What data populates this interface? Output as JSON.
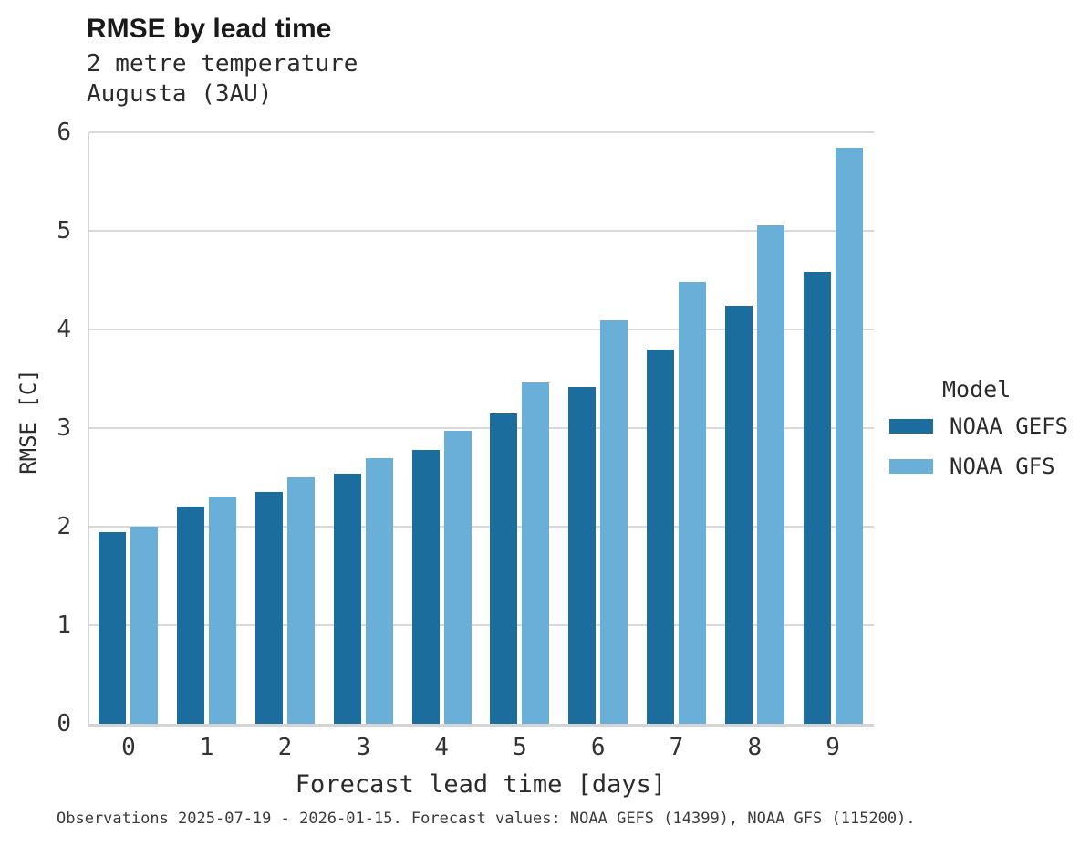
{
  "chart_data": {
    "type": "bar",
    "title": "RMSE by lead time",
    "subtitle_line1": "2 metre temperature",
    "subtitle_line2": "Augusta (3AU)",
    "xlabel": "Forecast lead time [days]",
    "ylabel": "RMSE [C]",
    "categories": [
      0,
      1,
      2,
      3,
      4,
      5,
      6,
      7,
      8,
      9
    ],
    "series": [
      {
        "name": "NOAA GEFS",
        "color": "#1b6d9d",
        "values": [
          1.94,
          2.2,
          2.35,
          2.54,
          2.78,
          3.15,
          3.42,
          3.8,
          4.24,
          4.58
        ]
      },
      {
        "name": "NOAA GFS",
        "color": "#69afd7",
        "values": [
          2.0,
          2.31,
          2.5,
          2.69,
          2.97,
          3.46,
          4.09,
          4.48,
          5.06,
          5.84
        ]
      }
    ],
    "ylim": [
      0,
      6
    ],
    "yticks": [
      0,
      1,
      2,
      3,
      4,
      5,
      6
    ],
    "grid": "horizontal",
    "legend_title": "Model",
    "legend_position": "right",
    "caption": "Observations 2025-07-19 - 2026-01-15. Forecast values: NOAA GEFS (14399), NOAA GFS (115200)."
  },
  "style": {
    "grid_color": "#d9d9d9",
    "spine_color": "#d4d4d4",
    "text_color": "#333333"
  }
}
